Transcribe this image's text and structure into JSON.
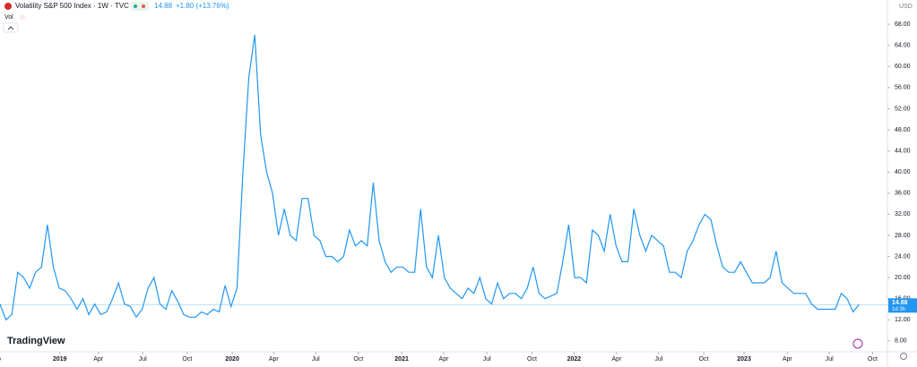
{
  "chart_data": {
    "type": "line",
    "title": "Volatility S&P 500 Index · 1W · TVC",
    "last_price": 14.88,
    "change_label": "+1.80 (+13.76%)",
    "countdown": "1d 3h",
    "currency": "USD",
    "indicator": "Vol",
    "brand": "TradingView",
    "color": "#2196f3",
    "values": [
      15,
      12,
      13,
      21,
      20,
      18,
      21,
      22,
      30,
      22,
      18,
      17.5,
      16,
      14,
      16,
      13,
      15,
      13,
      13.5,
      16,
      19,
      15,
      14.5,
      12.5,
      14,
      18,
      20,
      15,
      14,
      17.5,
      15.5,
      13,
      12.5,
      12.5,
      13.5,
      13,
      14,
      13.5,
      18.5,
      14.5,
      18,
      40,
      58,
      66,
      47,
      40,
      36,
      28,
      33,
      28,
      27,
      35,
      35,
      28,
      27,
      24,
      24,
      23,
      24,
      29,
      26,
      27,
      26,
      38,
      27,
      23,
      21,
      22,
      22,
      21,
      21,
      33,
      22,
      20,
      28,
      20,
      18,
      17,
      16,
      18,
      17,
      20,
      16,
      15,
      19,
      16,
      17,
      17,
      16,
      18,
      22,
      17,
      16,
      16.5,
      17,
      23,
      30,
      20,
      20,
      19,
      29,
      28,
      25,
      32,
      26,
      23,
      23,
      33,
      28,
      25,
      28,
      27,
      26,
      21,
      21,
      20,
      25,
      27,
      30,
      32,
      31,
      26,
      22,
      21,
      21,
      23,
      21,
      19,
      19,
      19,
      20,
      25,
      19,
      18,
      17,
      17,
      17,
      15,
      14,
      14,
      14,
      14,
      17,
      16,
      13.5,
      14.88
    ],
    "xlim": [
      0,
      149.8
    ],
    "xticks": [
      {
        "value": -0.8,
        "label": "Sep"
      },
      {
        "value": 10.1,
        "label": "2019"
      },
      {
        "value": 16.6,
        "label": "Apr"
      },
      {
        "value": 24.1,
        "label": "Jul"
      },
      {
        "value": 31.6,
        "label": "Oct"
      },
      {
        "value": 39.2,
        "label": "2020"
      },
      {
        "value": 46.2,
        "label": "Apr"
      },
      {
        "value": 53.3,
        "label": "Jul"
      },
      {
        "value": 60.5,
        "label": "Oct"
      },
      {
        "value": 67.8,
        "label": "2021"
      },
      {
        "value": 74.9,
        "label": "Apr"
      },
      {
        "value": 82.2,
        "label": "Jul"
      },
      {
        "value": 89.8,
        "label": "Oct"
      },
      {
        "value": 96.9,
        "label": "2022"
      },
      {
        "value": 104.1,
        "label": "Apr"
      },
      {
        "value": 111.2,
        "label": "Jul"
      },
      {
        "value": 118.8,
        "label": "Oct"
      },
      {
        "value": 125.6,
        "label": "2023"
      },
      {
        "value": 132.9,
        "label": "Apr"
      },
      {
        "value": 140,
        "label": "Jul"
      },
      {
        "value": 147.3,
        "label": "Oct"
      }
    ],
    "ylim": [
      5.6,
      72.6
    ],
    "yticks": [
      {
        "value": 8,
        "label": "8.00"
      },
      {
        "value": 12,
        "label": "12.00"
      },
      {
        "value": 16,
        "label": "16.00"
      },
      {
        "value": 20,
        "label": "20.00"
      },
      {
        "value": 24,
        "label": "24.00"
      },
      {
        "value": 28,
        "label": "28.00"
      },
      {
        "value": 32,
        "label": "32.00"
      },
      {
        "value": 36,
        "label": "36.00"
      },
      {
        "value": 40,
        "label": "40.00"
      },
      {
        "value": 44,
        "label": "44.00"
      },
      {
        "value": 48,
        "label": "48.00"
      },
      {
        "value": 52,
        "label": "52.00"
      },
      {
        "value": 56,
        "label": "56.00"
      },
      {
        "value": 60,
        "label": "60.00"
      },
      {
        "value": 64,
        "label": "64.00"
      },
      {
        "value": 68,
        "label": "68.00"
      }
    ]
  }
}
